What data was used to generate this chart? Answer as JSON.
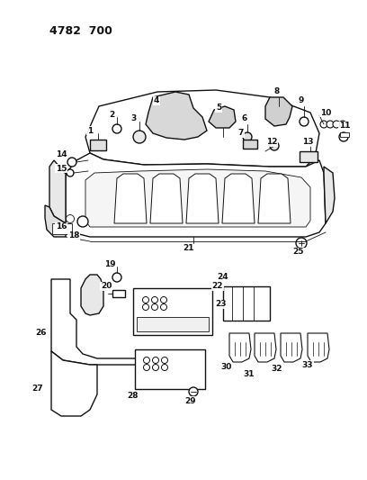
{
  "title": "4782  700",
  "bg_color": "#ffffff",
  "line_color": "#111111",
  "fig_width": 4.08,
  "fig_height": 5.33,
  "dpi": 100
}
